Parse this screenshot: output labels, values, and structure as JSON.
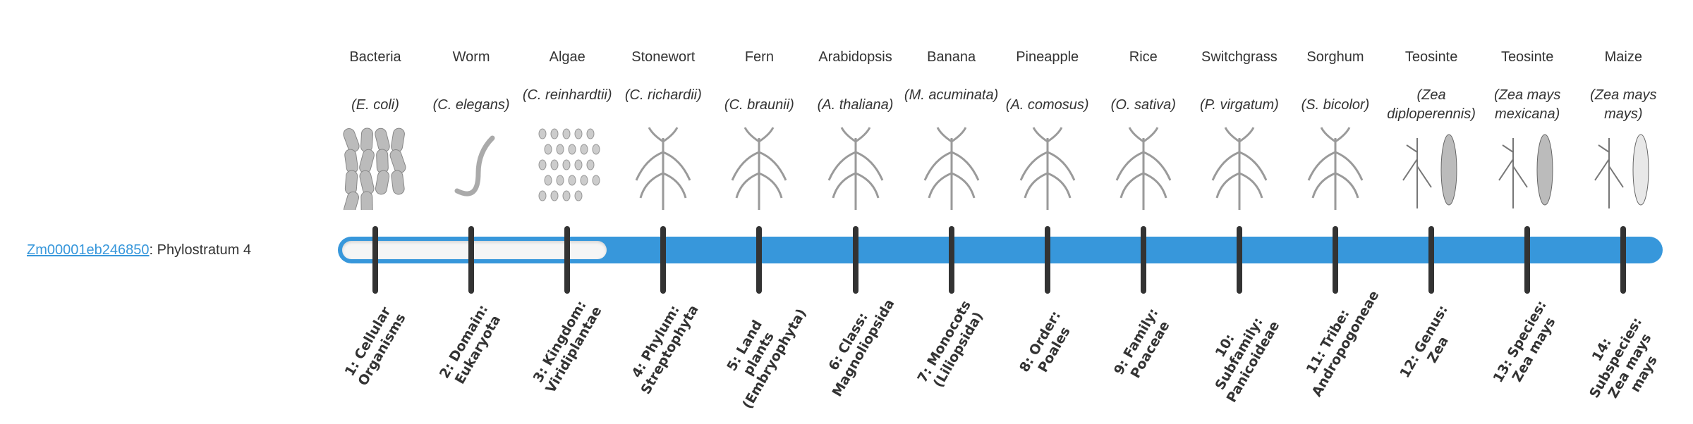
{
  "gene": {
    "id": "Zm00001eb246850",
    "suffix": ": Phylostratum 4",
    "phylostratum": 4
  },
  "colors": {
    "bar": "#3797db",
    "unfilled": "#f5f5f5",
    "tick": "#333333",
    "link": "#3797db"
  },
  "organisms": [
    {
      "common": "Bacteria",
      "sci": "(E. coli)",
      "icon": "bacteria-illustration"
    },
    {
      "common": "Worm",
      "sci": "(C. elegans)",
      "icon": "worm-illustration"
    },
    {
      "common": "Algae",
      "sci": "(C. reinhardtii)",
      "icon": "algae-illustration"
    },
    {
      "common": "Stonewort",
      "sci": "(C. richardii)",
      "icon": "stonewort-illustration"
    },
    {
      "common": "Fern",
      "sci": "(C. braunii)",
      "icon": "fern-illustration"
    },
    {
      "common": "Arabidopsis",
      "sci": "(A. thaliana)",
      "icon": "arabidopsis-illustration"
    },
    {
      "common": "Banana",
      "sci": "(M. acuminata)",
      "icon": "banana-illustration"
    },
    {
      "common": "Pineapple",
      "sci": "(A. comosus)",
      "icon": "pineapple-illustration"
    },
    {
      "common": "Rice",
      "sci": "(O. sativa)",
      "icon": "rice-illustration"
    },
    {
      "common": "Switchgrass",
      "sci": "(P. virgatum)",
      "icon": "switchgrass-illustration"
    },
    {
      "common": "Sorghum",
      "sci": "(S. bicolor)",
      "icon": "sorghum-illustration"
    },
    {
      "common": "Teosinte",
      "sci": "(Zea diploperennis)",
      "icon": "teosinte-illustration"
    },
    {
      "common": "Teosinte",
      "sci": "(Zea mays mexicana)",
      "icon": "teosinte-illustration"
    },
    {
      "common": "Maize",
      "sci": "(Zea mays mays)",
      "icon": "maize-illustration"
    }
  ],
  "strata": [
    "1: Cellular Organisms",
    "2: Domain: Eukaryota",
    "3: Kingdom: Viridiplantae",
    "4: Phylum: Streptophyta",
    "5: Land plants (Embryophyta)",
    "6: Class: Magnoliopsida",
    "7: Monocots (Liliopsida)",
    "8: Order: Poales",
    "9: Family: Poaceae",
    "10: Subfamily: Panicoideae",
    "11: Tribe: Andropogoneae",
    "12: Genus: Zea",
    "13: Species: Zea mays",
    "14: Subspecies: Zea mays mays"
  ]
}
